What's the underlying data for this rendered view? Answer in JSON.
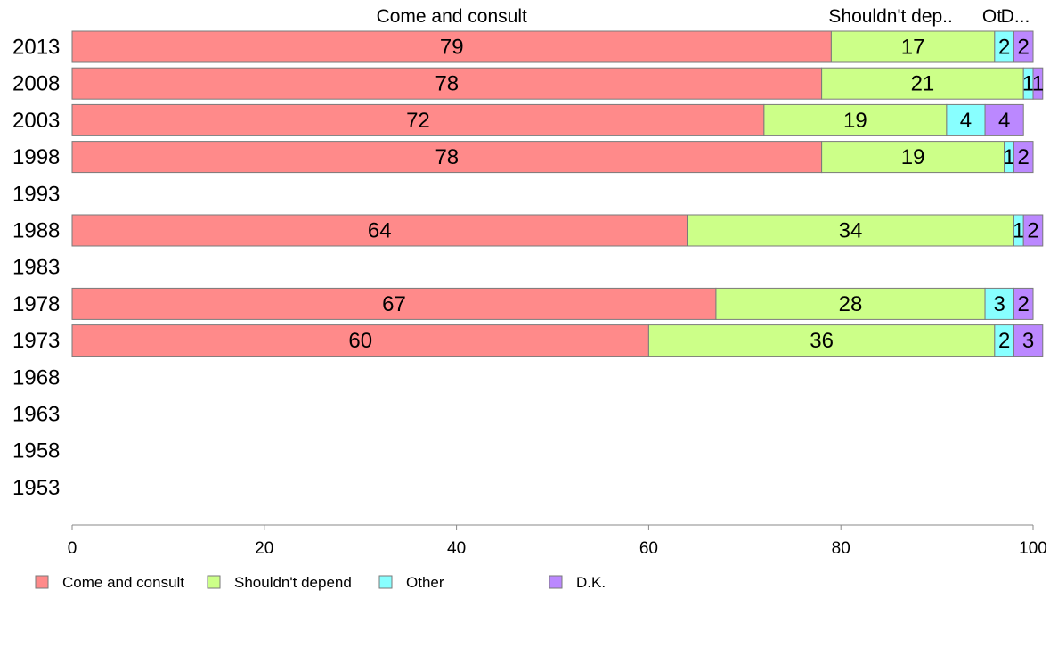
{
  "chart_data": {
    "type": "bar",
    "orientation": "horizontal",
    "stacked": true,
    "categories": [
      "2013",
      "2008",
      "2003",
      "1998",
      "1993",
      "1988",
      "1983",
      "1978",
      "1973",
      "1968",
      "1963",
      "1958",
      "1953"
    ],
    "series": [
      {
        "name": "Come and consult",
        "color": "#ff8a8a",
        "values": [
          79,
          78,
          72,
          78,
          null,
          64,
          null,
          67,
          60,
          null,
          null,
          null,
          null
        ]
      },
      {
        "name": "Shouldn't depend",
        "color": "#ccff88",
        "values": [
          17,
          21,
          19,
          19,
          null,
          34,
          null,
          28,
          36,
          null,
          null,
          null,
          null
        ]
      },
      {
        "name": "Other",
        "color": "#88ffff",
        "values": [
          2,
          1,
          4,
          1,
          null,
          1,
          null,
          3,
          2,
          null,
          null,
          null,
          null
        ]
      },
      {
        "name": "D.K.",
        "color": "#bb88ff",
        "values": [
          2,
          1,
          4,
          2,
          null,
          2,
          null,
          2,
          3,
          null,
          null,
          null,
          null
        ]
      }
    ],
    "segment_headers": [
      "Come and consult",
      "Shouldn't dep..",
      "Ot",
      "D..."
    ],
    "xlim": [
      0,
      100
    ],
    "xticks": [
      0,
      20,
      40,
      60,
      80,
      100
    ],
    "grid": false,
    "legend_position": "bottom"
  }
}
